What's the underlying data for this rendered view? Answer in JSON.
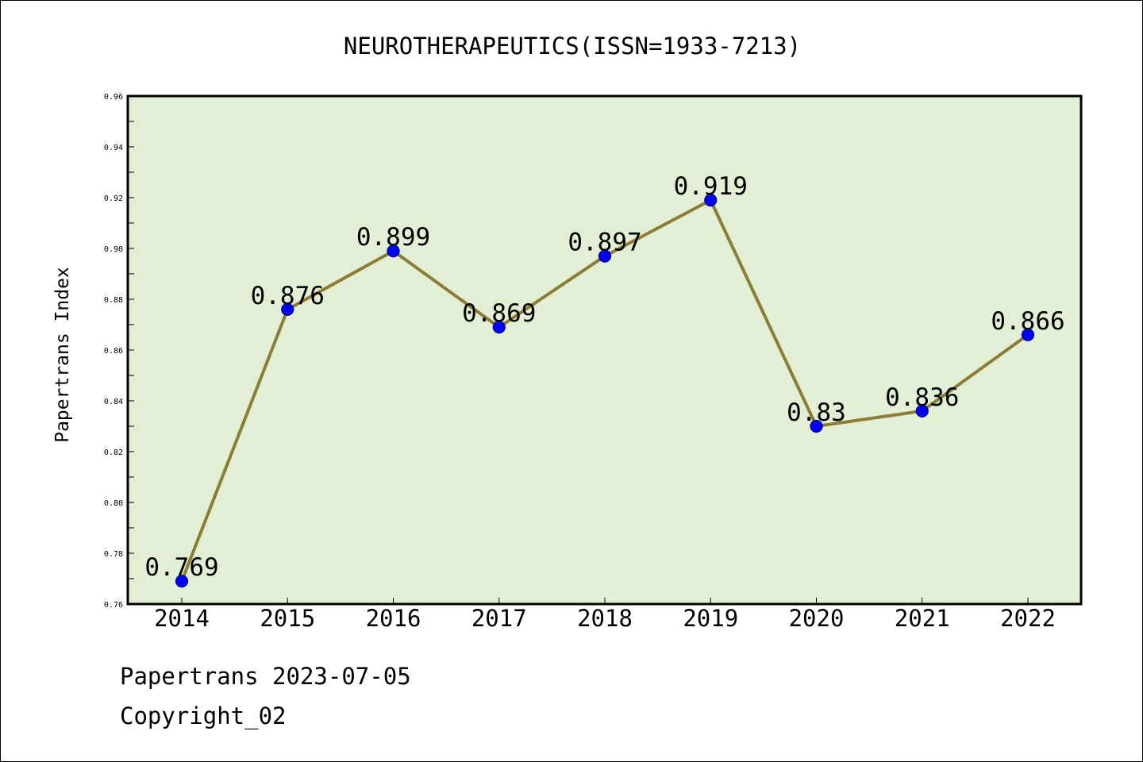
{
  "chart_data": {
    "type": "line",
    "title": "NEUROTHERAPEUTICS(ISSN=1933-7213)",
    "xlabel": "",
    "ylabel": "Papertrans Index",
    "categories": [
      "2014",
      "2015",
      "2016",
      "2017",
      "2018",
      "2019",
      "2020",
      "2021",
      "2022"
    ],
    "series": [
      {
        "values": [
          0.769,
          0.876,
          0.899,
          0.869,
          0.897,
          0.919,
          0.83,
          0.836,
          0.866
        ]
      }
    ],
    "data_labels": [
      "0.769",
      "0.876",
      "0.899",
      "0.869",
      "0.897",
      "0.919",
      "0.83",
      "0.836",
      "0.866"
    ],
    "ylim": [
      0.76,
      0.96
    ],
    "yticks": [
      "0.76",
      "0.78",
      "0.80",
      "0.82",
      "0.84",
      "0.86",
      "0.88",
      "0.90",
      "0.92",
      "0.94",
      "0.96"
    ],
    "grid": false,
    "legend": "none",
    "colors": {
      "plot_background": "#e2efd5",
      "line": "#8b7d35",
      "marker": "#0000ff"
    }
  },
  "footer": {
    "line1": "Papertrans 2023-07-05",
    "line2": "Copyright_02"
  }
}
